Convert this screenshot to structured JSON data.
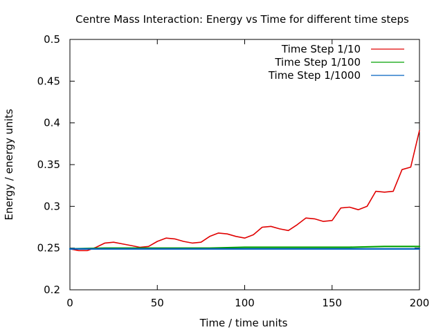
{
  "chart_data": {
    "type": "line",
    "title": "Centre Mass Interaction: Energy vs Time for different time steps",
    "xlabel": "Time / time units",
    "ylabel": "Energy / energy units",
    "xlim": [
      0,
      200
    ],
    "ylim": [
      0.2,
      0.5
    ],
    "xticks": [
      0,
      50,
      100,
      150,
      200
    ],
    "xtick_labels": [
      "0",
      "50",
      "100",
      "150",
      "200"
    ],
    "yticks": [
      0.2,
      0.25,
      0.3,
      0.35,
      0.4,
      0.45,
      0.5
    ],
    "ytick_labels": [
      "0.2",
      "0.25",
      "0.3",
      "0.35",
      "0.4",
      "0.45",
      "0.5"
    ],
    "grid": false,
    "legend_position": "top-right",
    "series": [
      {
        "name": "Time Step 1/10",
        "color": "#e00000",
        "x": [
          0,
          5,
          10,
          15,
          20,
          25,
          30,
          35,
          40,
          45,
          50,
          55,
          60,
          65,
          70,
          75,
          80,
          85,
          90,
          95,
          100,
          105,
          110,
          115,
          120,
          125,
          130,
          135,
          140,
          145,
          150,
          155,
          160,
          165,
          170,
          175,
          180,
          185,
          190,
          195,
          200
        ],
        "values": [
          0.249,
          0.247,
          0.247,
          0.251,
          0.256,
          0.257,
          0.255,
          0.253,
          0.251,
          0.252,
          0.258,
          0.262,
          0.261,
          0.258,
          0.256,
          0.257,
          0.264,
          0.268,
          0.267,
          0.264,
          0.262,
          0.266,
          0.275,
          0.276,
          0.273,
          0.271,
          0.278,
          0.286,
          0.285,
          0.282,
          0.283,
          0.298,
          0.299,
          0.296,
          0.3,
          0.318,
          0.317,
          0.318,
          0.344,
          0.347,
          0.391
        ]
      },
      {
        "name": "Time Step 1/100",
        "color": "#00a000",
        "x": [
          0,
          20,
          40,
          60,
          80,
          100,
          120,
          140,
          160,
          180,
          200
        ],
        "values": [
          0.249,
          0.25,
          0.25,
          0.25,
          0.25,
          0.251,
          0.251,
          0.251,
          0.251,
          0.252,
          0.252
        ]
      },
      {
        "name": "Time Step 1/1000",
        "color": "#0060c0",
        "x": [
          0,
          20,
          40,
          60,
          80,
          100,
          120,
          140,
          160,
          180,
          200
        ],
        "values": [
          0.249,
          0.249,
          0.249,
          0.249,
          0.249,
          0.249,
          0.249,
          0.249,
          0.249,
          0.249,
          0.249
        ]
      }
    ]
  }
}
